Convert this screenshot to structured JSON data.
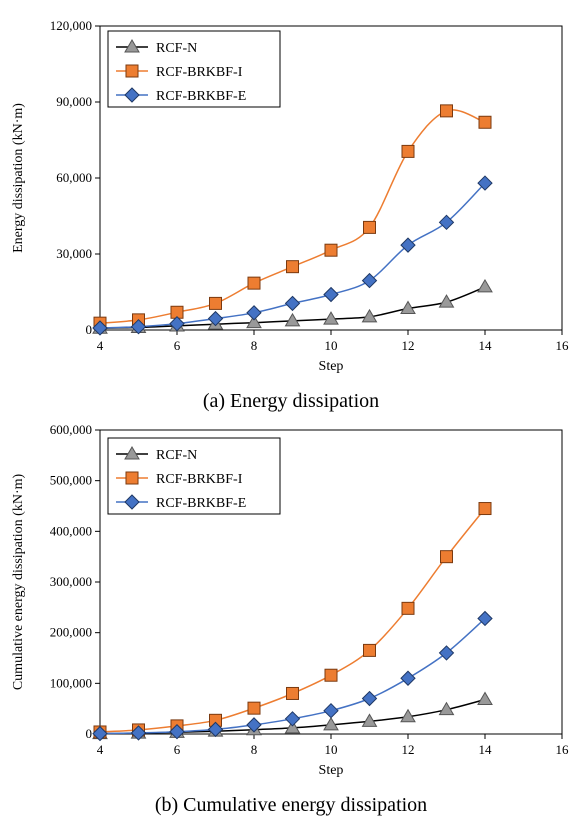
{
  "chart_data": [
    {
      "type": "line",
      "caption": "(a) Energy dissipation",
      "xlabel": "Step",
      "ylabel": "Energy dissipation (kN·m)",
      "xlim": [
        4,
        16
      ],
      "ylim": [
        0,
        120000
      ],
      "x_ticks": [
        "4",
        "6",
        "8",
        "10",
        "12",
        "14",
        "16"
      ],
      "y_ticks": [
        "0",
        "30,000",
        "60,000",
        "90,000",
        "120,000"
      ],
      "grid": false,
      "legend_position": "top-left",
      "x": [
        4,
        5,
        6,
        7,
        8,
        9,
        10,
        11,
        12,
        13,
        14
      ],
      "series": [
        {
          "name": "RCF-N",
          "marker": "triangle",
          "color": "#000000",
          "marker_color": "#999999",
          "values": [
            700,
            1000,
            1600,
            2300,
            2900,
            3600,
            4300,
            5200,
            8500,
            11000,
            17000
          ]
        },
        {
          "name": "RCF-BRKBF-I",
          "marker": "square",
          "color": "#ED7D31",
          "marker_color": "#ED7D31",
          "values": [
            2700,
            4000,
            7000,
            10500,
            18500,
            25000,
            31500,
            40500,
            70500,
            86500,
            82000
          ]
        },
        {
          "name": "RCF-BRKBF-E",
          "marker": "diamond",
          "color": "#4472C4",
          "marker_color": "#4472C4",
          "values": [
            800,
            1300,
            2500,
            4500,
            6800,
            10500,
            14000,
            19500,
            33500,
            42500,
            58000
          ]
        }
      ]
    },
    {
      "type": "line",
      "caption": "(b) Cumulative energy dissipation",
      "xlabel": "Step",
      "ylabel": "Cumulative energy dissipation (kN·m)",
      "xlim": [
        4,
        16
      ],
      "ylim": [
        0,
        600000
      ],
      "x_ticks": [
        "4",
        "6",
        "8",
        "10",
        "12",
        "14",
        "16"
      ],
      "y_ticks": [
        "0",
        "100,000",
        "200,000",
        "300,000",
        "400,000",
        "500,000",
        "600,000"
      ],
      "grid": false,
      "legend_position": "top-left",
      "x": [
        4,
        5,
        6,
        7,
        8,
        9,
        10,
        11,
        12,
        13,
        14
      ],
      "series": [
        {
          "name": "RCF-N",
          "marker": "triangle",
          "color": "#000000",
          "marker_color": "#999999",
          "values": [
            700,
            1700,
            3300,
            5600,
            8500,
            12100,
            18000,
            25000,
            34000,
            48000,
            68000
          ]
        },
        {
          "name": "RCF-BRKBF-I",
          "marker": "square",
          "color": "#ED7D31",
          "marker_color": "#ED7D31",
          "values": [
            4000,
            8000,
            16000,
            27000,
            51000,
            80000,
            116000,
            165000,
            248000,
            350000,
            445000
          ]
        },
        {
          "name": "RCF-BRKBF-E",
          "marker": "diamond",
          "color": "#4472C4",
          "marker_color": "#4472C4",
          "values": [
            800,
            2100,
            4600,
            9100,
            18000,
            30000,
            46000,
            70000,
            110000,
            160000,
            228000
          ]
        }
      ]
    }
  ]
}
